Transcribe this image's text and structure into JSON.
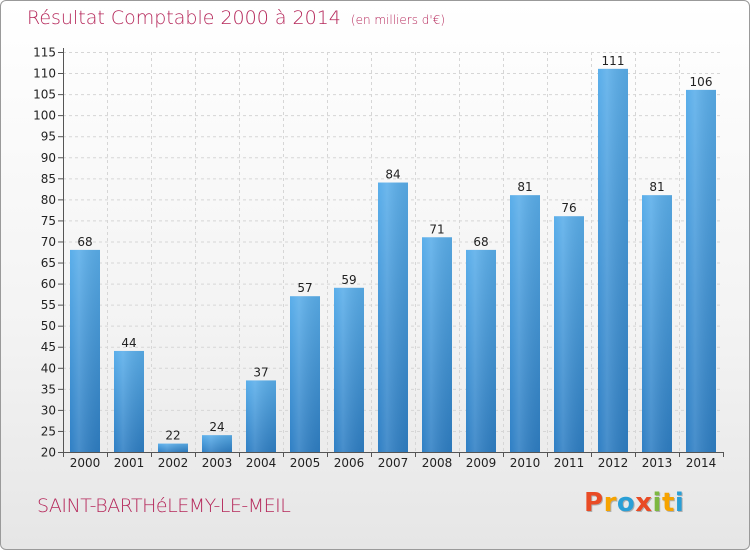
{
  "header": {
    "title": "Résultat Comptable 2000 à 2014",
    "subtitle": "(en milliers d'€)"
  },
  "footer": {
    "commune": "SAINT-BARTHéLEMY-LE-MEIL",
    "logo_letters": [
      "P",
      "r",
      "o",
      "x",
      "i",
      "t",
      "i"
    ],
    "logo_colors": [
      "#e94b25",
      "#f6a300",
      "#2a9fd6",
      "#e94b25",
      "#7db841",
      "#f6a300",
      "#2a9fd6"
    ]
  },
  "chart_data": {
    "type": "bar",
    "categories": [
      "2000",
      "2001",
      "2002",
      "2003",
      "2004",
      "2005",
      "2006",
      "2007",
      "2008",
      "2009",
      "2010",
      "2011",
      "2012",
      "2013",
      "2014"
    ],
    "values": [
      68,
      44,
      22,
      24,
      37,
      57,
      59,
      84,
      71,
      68,
      81,
      76,
      111,
      81,
      106
    ],
    "value_labels": [
      "68",
      "44",
      "22",
      "24",
      "37",
      "57",
      "59",
      "84",
      "71",
      "68",
      "81",
      "76",
      "111",
      "81",
      "106"
    ],
    "ylim": [
      20,
      115
    ],
    "yticks": [
      20,
      25,
      30,
      35,
      40,
      45,
      50,
      55,
      60,
      65,
      70,
      75,
      80,
      85,
      90,
      95,
      100,
      105,
      110,
      115
    ],
    "grid": true,
    "bar_color": "#4a9ee0",
    "xlabel": "",
    "ylabel": ""
  }
}
